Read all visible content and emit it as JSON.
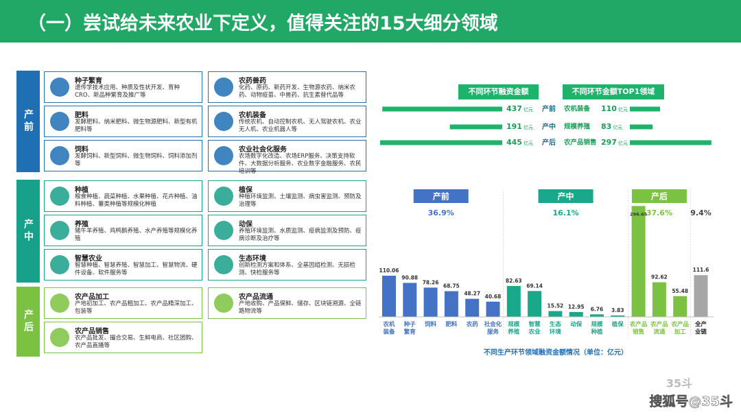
{
  "header": {
    "title": "（一）尝试给未来农业下定义，值得关注的15大细分领域"
  },
  "stages": [
    {
      "label": "产前",
      "color": "#1f6fb5",
      "items": [
        {
          "title": "种子繁育",
          "desc": "遗传学技术应用、种质及性状开发、育种CRO、新品种繁育及推广等"
        },
        {
          "title": "农药兽药",
          "desc": "化药、原药、新药开发、生物源农药、纳米农药、动物疫苗、中兽药、抗生素替代品等"
        },
        {
          "title": "肥料",
          "desc": "发酵肥料、纳米肥料、微生物源肥料、新型有机肥料等"
        },
        {
          "title": "农机装备",
          "desc": "传统农机、自动控制农机、无人驾驶农机、农业无人机、农业机器人等"
        },
        {
          "title": "饲料",
          "desc": "发酵饲料、新型饲料、微生物饲料、饲料添加剂等"
        },
        {
          "title": "农业社会化服务",
          "desc": "农场数字化改造、农场ERP服务、决策支持软件、大数据分析服务、农业数字金融服务、农民培训等"
        }
      ]
    },
    {
      "label": "产中",
      "color": "#17a08a",
      "items": [
        {
          "title": "种植",
          "desc": "粮食种植、蔬菜种植、水果种植、花卉种植、油料种植、薯类种植等规模化种植"
        },
        {
          "title": "植保",
          "desc": "种植环境监测、土壤监测、病虫害监测、预防及治理等"
        },
        {
          "title": "养殖",
          "desc": "猪牛羊养殖、鸡鸭鹅养殖、水产养殖等规模化养殖"
        },
        {
          "title": "动保",
          "desc": "养殖环境监测、水质监测、疫病监测及预防、疫病诊断及治疗等"
        },
        {
          "title": "智慧农业",
          "desc": "智慧种植、智慧养殖、智慧加工、智慧物流、硬件设备、软件服务等"
        },
        {
          "title": "生态环境",
          "desc": "创新检测方案和体系、全基因组检测、无损检测、快检服务等"
        }
      ]
    },
    {
      "label": "产后",
      "color": "#7cc242",
      "items": [
        {
          "title": "农产品加工",
          "desc": "产地初加工、农产品粗加工、农产品精深加工、包装等"
        },
        {
          "title": "农产品流通",
          "desc": "产地收购、产品保鲜、储存、区块链溯源、全链路物流等"
        },
        {
          "title": "农产品销售",
          "desc": "农产品批发、撮合交易、生鲜电商、社区团购、农产品直播等"
        }
      ]
    }
  ],
  "chart_data": [
    {
      "type": "hbar",
      "unit": "亿元",
      "color": "#1db36a",
      "categories": [
        "产前",
        "产中",
        "产后"
      ],
      "series": [
        {
          "name": "不同环节融资金额",
          "values": [
            437,
            191,
            445
          ]
        },
        {
          "name": "不同环节金额TOP1领域",
          "categories": [
            "农机装备",
            "规模养殖",
            "农产品销售"
          ],
          "values": [
            110,
            83,
            297
          ]
        }
      ]
    },
    {
      "type": "bar",
      "title": "不同生产环节领域融资金额情况（单位：亿元）",
      "categories": [
        [
          "农机",
          "装备"
        ],
        [
          "种子",
          "繁育"
        ],
        [
          "饲料"
        ],
        [
          "肥料"
        ],
        [
          "农药"
        ],
        [
          "社会化",
          "服务"
        ],
        [
          "规模",
          "养殖"
        ],
        [
          "智慧",
          "农业"
        ],
        [
          "生态",
          "环境"
        ],
        [
          "动保"
        ],
        [
          "规模",
          "种植"
        ],
        [
          "植保"
        ],
        [
          "农产品",
          "销售"
        ],
        [
          "农产品",
          "流通"
        ],
        [
          "农产品",
          "加工"
        ],
        [
          "全产",
          "业链"
        ]
      ],
      "values": [
        110.06,
        90.88,
        78.26,
        68.75,
        48.27,
        40.68,
        82.63,
        69.14,
        15.52,
        12.95,
        6.76,
        3.83,
        296.65,
        92.62,
        55.48,
        111.6
      ],
      "groups": [
        {
          "name": "产前",
          "share": "36.9%",
          "color": "#4472c4"
        },
        {
          "name": "产中",
          "share": "16.1%",
          "color": "#1aa88a"
        },
        {
          "name": "产后",
          "share": "37.6%",
          "color": "#7cc242"
        },
        {
          "share": "9.4%",
          "color": "#a6a6a6"
        }
      ]
    }
  ],
  "watermark": {
    "logo": "35斗",
    "text": "搜狐号@35斗"
  }
}
